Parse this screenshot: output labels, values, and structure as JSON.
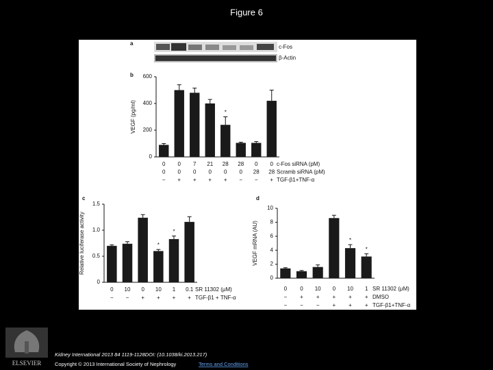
{
  "title": "Figure 6",
  "chart_data": [
    {
      "type": "blot",
      "panel": "a",
      "labels": [
        "c-Fos",
        "β-Actin"
      ]
    },
    {
      "type": "bar",
      "panel": "b",
      "ylabel": "VEGF (pg/ml)",
      "color": "#1a1a1a",
      "categories": [
        "0",
        "0",
        "7",
        "21",
        "28",
        "28",
        "0",
        "0"
      ],
      "category_rows": [
        {
          "name": "Scramb siRNA (pM)",
          "labels": [
            "0",
            "0",
            "0",
            "0",
            "0",
            "0",
            "28",
            "28"
          ]
        },
        {
          "name": "TGF-β1+TNF-α",
          "labels": [
            "−",
            "+",
            "+",
            "+",
            "+",
            "−",
            "−",
            "+"
          ]
        }
      ],
      "category_name": "c-Fos siRNA (pM)",
      "values": [
        90,
        500,
        480,
        400,
        240,
        105,
        105,
        420
      ],
      "errors": [
        10,
        40,
        35,
        30,
        60,
        5,
        10,
        80
      ],
      "significance": [
        null,
        null,
        null,
        null,
        "*",
        null,
        null,
        null
      ],
      "ylim": [
        0,
        600
      ],
      "yticks": [
        0,
        200,
        400,
        600
      ]
    },
    {
      "type": "bar",
      "panel": "c",
      "ylabel": "Relative luciferase activity",
      "color": "#1a1a1a",
      "categories": [
        "0",
        "10",
        "0",
        "10",
        "1",
        "0.1"
      ],
      "category_name": "SR 11302 (μM)",
      "category_rows": [
        {
          "name": "TGF-β1 + TNF-α",
          "labels": [
            "−",
            "−",
            "+",
            "+",
            "+",
            "+"
          ]
        }
      ],
      "values": [
        0.7,
        0.74,
        1.24,
        0.6,
        0.83,
        1.16
      ],
      "errors": [
        0.02,
        0.04,
        0.06,
        0.03,
        0.06,
        0.1
      ],
      "significance": [
        null,
        null,
        null,
        "*",
        "*",
        null
      ],
      "ylim": [
        0,
        1.5
      ],
      "yticks": [
        0,
        0.5,
        {
          "value": 1,
          "label": "1.0"
        },
        1.5
      ]
    },
    {
      "type": "bar",
      "panel": "d",
      "ylabel": "VEGF mRNA (AU)",
      "color": "#1a1a1a",
      "categories": [
        "0",
        "0",
        "10",
        "0",
        "10",
        "1"
      ],
      "category_name": "SR 11302 (μM)",
      "category_rows": [
        {
          "name": "DMSO",
          "labels": [
            "−",
            "+",
            "+",
            "+",
            "+",
            "+"
          ]
        },
        {
          "name": "TGF-β1+TNF-α",
          "labels": [
            "−",
            "−",
            "−",
            "+",
            "+",
            "+"
          ]
        }
      ],
      "values": [
        1.4,
        1.0,
        1.6,
        8.6,
        4.3,
        3.1
      ],
      "errors": [
        0.1,
        0.1,
        0.3,
        0.4,
        0.5,
        0.4
      ],
      "significance": [
        null,
        null,
        null,
        null,
        "*",
        "*"
      ],
      "ylim": [
        0,
        10
      ],
      "yticks": [
        0,
        2,
        4,
        6,
        8,
        10
      ]
    }
  ],
  "footer": {
    "citation": "Kidney International 2013 84 1119-1128DOI: (10.1038/ki.2013.217)",
    "copyright": "Copyright © 2013 International Society of Nephrology",
    "link": "Terms and Conditions"
  },
  "publisher": "ELSEVIER"
}
